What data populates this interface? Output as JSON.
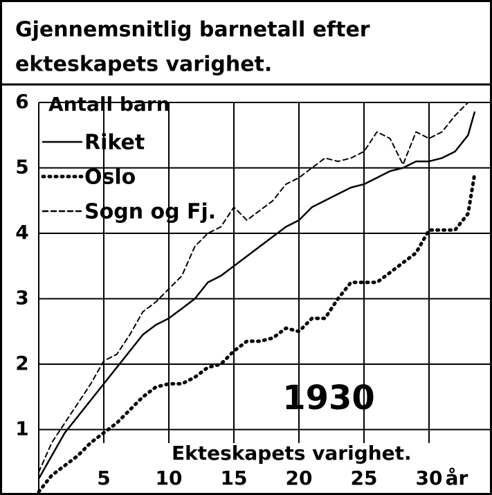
{
  "chart_data": {
    "type": "line",
    "title": [
      "Gjennemsnitlig barnetall efter",
      "ekteskapets varighet."
    ],
    "y_label": "Antall barn",
    "x_label": "Ekteskapets varighet.",
    "x_unit": "år",
    "annotation": "1930",
    "x": [
      0,
      1,
      2,
      3,
      4,
      5,
      6,
      7,
      8,
      9,
      10,
      11,
      12,
      13,
      14,
      15,
      16,
      17,
      18,
      19,
      20,
      21,
      22,
      23,
      24,
      25,
      26,
      27,
      28,
      29,
      30,
      31,
      32,
      33,
      33.5
    ],
    "series": [
      {
        "name": "Riket",
        "color": "#000000",
        "style": "solid",
        "values": [
          0.25,
          0.6,
          0.95,
          1.2,
          1.45,
          1.7,
          1.95,
          2.2,
          2.45,
          2.6,
          2.7,
          2.85,
          3.0,
          3.25,
          3.35,
          3.5,
          3.65,
          3.8,
          3.95,
          4.1,
          4.2,
          4.4,
          4.5,
          4.6,
          4.7,
          4.75,
          4.85,
          4.95,
          5.0,
          5.1,
          5.1,
          5.15,
          5.25,
          5.5,
          5.85
        ]
      },
      {
        "name": "Oslo",
        "color": "#000000",
        "style": "dotted",
        "values": [
          0.05,
          0.3,
          0.45,
          0.6,
          0.8,
          0.95,
          1.1,
          1.3,
          1.5,
          1.65,
          1.7,
          1.7,
          1.8,
          1.95,
          2.0,
          2.2,
          2.35,
          2.35,
          2.4,
          2.55,
          2.5,
          2.7,
          2.7,
          3.0,
          3.25,
          3.25,
          3.25,
          3.4,
          3.55,
          3.7,
          4.05,
          4.05,
          4.05,
          4.3,
          4.9
        ]
      },
      {
        "name": "Sogn og Fj.",
        "color": "#000000",
        "style": "dashed",
        "values": [
          0.35,
          0.8,
          1.1,
          1.4,
          1.7,
          2.05,
          2.15,
          2.45,
          2.8,
          2.95,
          3.15,
          3.35,
          3.8,
          4.0,
          4.1,
          4.4,
          4.2,
          4.35,
          4.5,
          4.75,
          4.85,
          5.0,
          5.15,
          5.1,
          5.15,
          5.25,
          5.55,
          5.45,
          5.05,
          5.55,
          5.45,
          5.55,
          5.8,
          6.0,
          null
        ]
      }
    ],
    "xlim": [
      0,
      35
    ],
    "ylim": [
      0,
      6
    ],
    "xticks": [
      5,
      10,
      15,
      20,
      25,
      30
    ],
    "yticks": [
      1,
      2,
      3,
      4,
      5,
      6
    ],
    "grid": true
  }
}
